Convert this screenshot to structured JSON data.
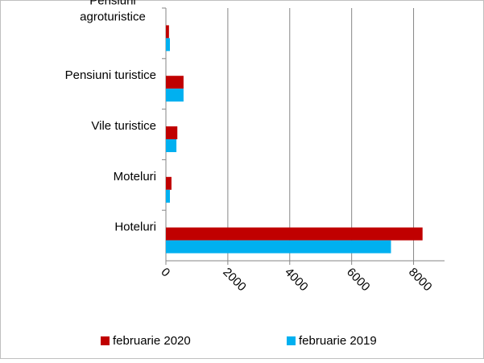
{
  "chart_data": {
    "type": "hbar",
    "categories": [
      "Pensiuni agroturistice",
      "Pensiuni turistice",
      "Vile turistice",
      "Moteluri",
      "Hoteluri"
    ],
    "series": [
      {
        "name": "februarie 2020",
        "color": "#c00000",
        "values": [
          100,
          570,
          370,
          180,
          8290
        ]
      },
      {
        "name": "februarie 2019",
        "color": "#00b0f0",
        "values": [
          130,
          570,
          340,
          130,
          7270
        ]
      }
    ],
    "xlim": [
      0,
      9000
    ],
    "xticks": [
      0,
      2000,
      4000,
      6000,
      8000
    ],
    "grid": true
  }
}
